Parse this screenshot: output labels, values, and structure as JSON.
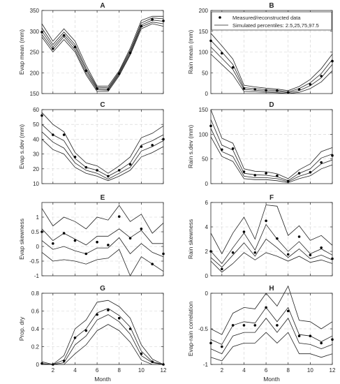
{
  "chart_data": [
    {
      "type": "line",
      "title": "A",
      "xlabel": "",
      "ylabel": "Evap mean (mm)",
      "xlim": [
        1,
        12
      ],
      "ylim": [
        150,
        350
      ],
      "yticks": [
        150,
        200,
        250,
        300,
        350
      ],
      "xticks": [
        2,
        4,
        6,
        8,
        10,
        12
      ],
      "show_xticklabels": false,
      "x": [
        1,
        2,
        3,
        4,
        5,
        6,
        7,
        8,
        9,
        10,
        11,
        12
      ],
      "points": [
        298,
        258,
        290,
        262,
        205,
        162,
        160,
        198,
        248,
        312,
        328,
        325
      ],
      "percentile_lines": [
        [
          286,
          250,
          280,
          250,
          195,
          155,
          155,
          193,
          243,
          306,
          318,
          312
        ],
        [
          292,
          256,
          287,
          255,
          200,
          159,
          158,
          196,
          246,
          311,
          322,
          318
        ],
        [
          300,
          262,
          292,
          262,
          206,
          162,
          161,
          199,
          250,
          315,
          327,
          324
        ],
        [
          308,
          268,
          298,
          268,
          211,
          165,
          164,
          202,
          254,
          320,
          332,
          330
        ],
        [
          318,
          276,
          306,
          276,
          218,
          168,
          168,
          205,
          259,
          326,
          336,
          336
        ]
      ]
    },
    {
      "type": "line",
      "title": "B",
      "xlabel": "",
      "ylabel": "Rain mean (mm)",
      "xlim": [
        1,
        12
      ],
      "ylim": [
        0,
        200
      ],
      "yticks": [
        0,
        50,
        100,
        150,
        200
      ],
      "xticks": [
        2,
        4,
        6,
        8,
        10,
        12
      ],
      "show_xticklabels": false,
      "legend": {
        "location": "top-right",
        "entries": [
          "Measured/reconstructed data",
          "Simulated percentiles: 2.5,25,75,97.5"
        ]
      },
      "x": [
        1,
        2,
        3,
        4,
        5,
        6,
        7,
        8,
        9,
        10,
        11,
        12
      ],
      "points": [
        127,
        97,
        63,
        12,
        10,
        8,
        7,
        3,
        10,
        22,
        42,
        78
      ],
      "percentile_lines": [
        [
          95,
          70,
          45,
          5,
          4,
          3,
          2,
          0,
          3,
          12,
          28,
          55
        ],
        [
          112,
          85,
          58,
          10,
          8,
          6,
          5,
          2,
          7,
          19,
          38,
          70
        ],
        [
          128,
          100,
          70,
          14,
          12,
          9,
          8,
          4,
          12,
          26,
          48,
          82
        ],
        [
          145,
          115,
          83,
          20,
          16,
          13,
          11,
          7,
          17,
          34,
          60,
          95
        ]
      ]
    },
    {
      "type": "line",
      "title": "C",
      "xlabel": "",
      "ylabel": "Evap s.dev (mm)",
      "xlim": [
        1,
        12
      ],
      "ylim": [
        10,
        60
      ],
      "yticks": [
        10,
        20,
        30,
        40,
        50,
        60
      ],
      "xticks": [
        2,
        4,
        6,
        8,
        10,
        12
      ],
      "show_xticklabels": false,
      "x": [
        1,
        2,
        3,
        4,
        5,
        6,
        7,
        8,
        9,
        10,
        11,
        12
      ],
      "points": [
        56,
        43,
        43,
        28,
        21,
        19,
        15,
        19,
        23,
        35,
        36,
        40
      ],
      "percentile_lines": [
        [
          40,
          33,
          30,
          21,
          17,
          15,
          12,
          15,
          19,
          28,
          31,
          35
        ],
        [
          45,
          38,
          34,
          24,
          19,
          17,
          13,
          17,
          21,
          32,
          35,
          39
        ],
        [
          50,
          43,
          39,
          27,
          21,
          19,
          15,
          19,
          24,
          36,
          39,
          43
        ],
        [
          58,
          50,
          45,
          31,
          24,
          22,
          17,
          22,
          28,
          41,
          44,
          49
        ]
      ]
    },
    {
      "type": "line",
      "title": "D",
      "xlabel": "",
      "ylabel": "Rain s.dev (mm)",
      "xlim": [
        1,
        12
      ],
      "ylim": [
        0,
        150
      ],
      "yticks": [
        0,
        50,
        100,
        150
      ],
      "xticks": [
        2,
        4,
        6,
        8,
        10,
        12
      ],
      "show_xticklabels": false,
      "x": [
        1,
        2,
        3,
        4,
        5,
        6,
        7,
        8,
        9,
        10,
        11,
        12
      ],
      "points": [
        117,
        69,
        71,
        24,
        17,
        21,
        16,
        5,
        21,
        23,
        43,
        57
      ],
      "percentile_lines": [
        [
          95,
          55,
          45,
          10,
          8,
          8,
          6,
          2,
          10,
          16,
          30,
          38
        ],
        [
          112,
          65,
          55,
          15,
          12,
          12,
          10,
          4,
          15,
          22,
          40,
          48
        ],
        [
          130,
          78,
          68,
          21,
          18,
          17,
          14,
          6,
          21,
          30,
          52,
          60
        ],
        [
          150,
          92,
          82,
          30,
          25,
          24,
          20,
          10,
          28,
          40,
          65,
          73
        ]
      ]
    },
    {
      "type": "line",
      "title": "E",
      "xlabel": "",
      "ylabel": "Evap skewness",
      "xlim": [
        1,
        12
      ],
      "ylim": [
        -1,
        1.5
      ],
      "yticks": [
        -1,
        -0.5,
        0,
        0.5,
        1
      ],
      "xticks": [
        2,
        4,
        6,
        8,
        10,
        12
      ],
      "show_xticklabels": false,
      "x": [
        1,
        2,
        3,
        4,
        5,
        6,
        7,
        8,
        9,
        10,
        11,
        12
      ],
      "points": [
        0.5,
        0.1,
        0.45,
        0.2,
        -0.25,
        0.15,
        0.05,
        1.02,
        0.28,
        0.6,
        -0.6,
        -0.25
      ],
      "percentile_lines": [
        [
          -0.2,
          -0.5,
          -0.45,
          -0.5,
          -0.6,
          -0.45,
          -0.4,
          -0.1,
          -1.0,
          -0.35,
          -0.6,
          -0.85
        ],
        [
          0.2,
          -0.1,
          0.0,
          -0.15,
          -0.25,
          -0.05,
          -0.05,
          0.3,
          -0.25,
          0.1,
          -0.2,
          -0.35
        ],
        [
          0.6,
          0.2,
          0.45,
          0.25,
          0.05,
          0.35,
          0.35,
          0.6,
          0.3,
          0.55,
          0.1,
          0.1
        ],
        [
          1.3,
          0.7,
          1.0,
          0.85,
          0.6,
          1.0,
          0.9,
          1.4,
          0.85,
          1.1,
          0.45,
          0.8
        ]
      ]
    },
    {
      "type": "line",
      "title": "F",
      "xlabel": "",
      "ylabel": "Rain skewness",
      "xlim": [
        1,
        12
      ],
      "ylim": [
        0,
        6
      ],
      "yticks": [
        0,
        2,
        4,
        6
      ],
      "xticks": [
        2,
        4,
        6,
        8,
        10,
        12
      ],
      "show_xticklabels": false,
      "x": [
        1,
        2,
        3,
        4,
        5,
        6,
        7,
        8,
        9,
        10,
        11,
        12
      ],
      "points": [
        2.0,
        0.55,
        1.9,
        3.6,
        1.9,
        4.5,
        3.05,
        1.75,
        3.2,
        1.7,
        2.3,
        1.4
      ],
      "percentile_lines": [
        [
          1.2,
          0.3,
          1.0,
          1.9,
          1.3,
          1.9,
          1.6,
          1.2,
          1.6,
          1.1,
          1.3,
          1.0
        ],
        [
          1.5,
          0.7,
          1.7,
          2.7,
          1.6,
          3.0,
          2.3,
          1.5,
          2.2,
          1.4,
          1.7,
          1.3
        ],
        [
          2.0,
          1.0,
          2.3,
          3.5,
          2.1,
          4.2,
          3.0,
          2.0,
          2.8,
          1.8,
          2.2,
          1.7
        ],
        [
          3.5,
          1.8,
          3.5,
          4.8,
          3.0,
          5.8,
          5.7,
          3.3,
          4.1,
          2.9,
          3.3,
          2.5
        ]
      ]
    },
    {
      "type": "line",
      "title": "G",
      "xlabel": "Month",
      "ylabel": "Prop. dry",
      "xlim": [
        1,
        12
      ],
      "ylim": [
        0,
        0.8
      ],
      "yticks": [
        0,
        0.2,
        0.4,
        0.6,
        0.8
      ],
      "xticks": [
        2,
        4,
        6,
        8,
        10,
        12
      ],
      "show_xticklabels": true,
      "x": [
        1,
        2,
        3,
        4,
        5,
        6,
        7,
        8,
        9,
        10,
        11,
        12
      ],
      "points": [
        0.01,
        0.0,
        0.04,
        0.3,
        0.38,
        0.56,
        0.61,
        0.52,
        0.4,
        0.12,
        0.03,
        0.0
      ],
      "percentile_lines": [
        [
          0.0,
          0.0,
          0.0,
          0.12,
          0.22,
          0.38,
          0.45,
          0.38,
          0.25,
          0.05,
          0.0,
          0.0
        ],
        [
          0.0,
          0.0,
          0.02,
          0.22,
          0.32,
          0.5,
          0.56,
          0.48,
          0.34,
          0.1,
          0.02,
          0.0
        ],
        [
          0.01,
          0.0,
          0.05,
          0.3,
          0.4,
          0.58,
          0.63,
          0.55,
          0.42,
          0.15,
          0.03,
          0.0
        ],
        [
          0.03,
          0.0,
          0.1,
          0.4,
          0.5,
          0.7,
          0.72,
          0.65,
          0.52,
          0.22,
          0.06,
          0.0
        ]
      ]
    },
    {
      "type": "line",
      "title": "H",
      "xlabel": "Month",
      "ylabel": "Evap-rain correlation",
      "xlim": [
        1,
        12
      ],
      "ylim": [
        -1,
        0
      ],
      "yticks": [
        -1,
        -0.5,
        0
      ],
      "xticks": [
        2,
        4,
        6,
        8,
        10,
        12
      ],
      "show_xticklabels": true,
      "x": [
        1,
        2,
        3,
        4,
        5,
        6,
        7,
        8,
        9,
        10,
        11,
        12
      ],
      "points": [
        -0.7,
        -0.75,
        -0.45,
        -0.45,
        -0.45,
        -0.2,
        -0.45,
        -0.25,
        -0.6,
        -0.6,
        -0.7,
        -0.65
      ],
      "percentile_lines": [
        [
          -0.9,
          -0.95,
          -0.75,
          -0.7,
          -0.7,
          -0.55,
          -0.7,
          -0.55,
          -0.85,
          -0.85,
          -0.9,
          -0.85
        ],
        [
          -0.78,
          -0.85,
          -0.6,
          -0.55,
          -0.55,
          -0.35,
          -0.55,
          -0.35,
          -0.7,
          -0.72,
          -0.78,
          -0.72
        ],
        [
          -0.65,
          -0.72,
          -0.45,
          -0.4,
          -0.42,
          -0.2,
          -0.4,
          -0.2,
          -0.58,
          -0.6,
          -0.68,
          -0.6
        ],
        [
          -0.5,
          -0.58,
          -0.28,
          -0.2,
          -0.22,
          0.0,
          -0.18,
          0.1,
          -0.38,
          -0.4,
          -0.5,
          -0.4
        ]
      ]
    }
  ]
}
